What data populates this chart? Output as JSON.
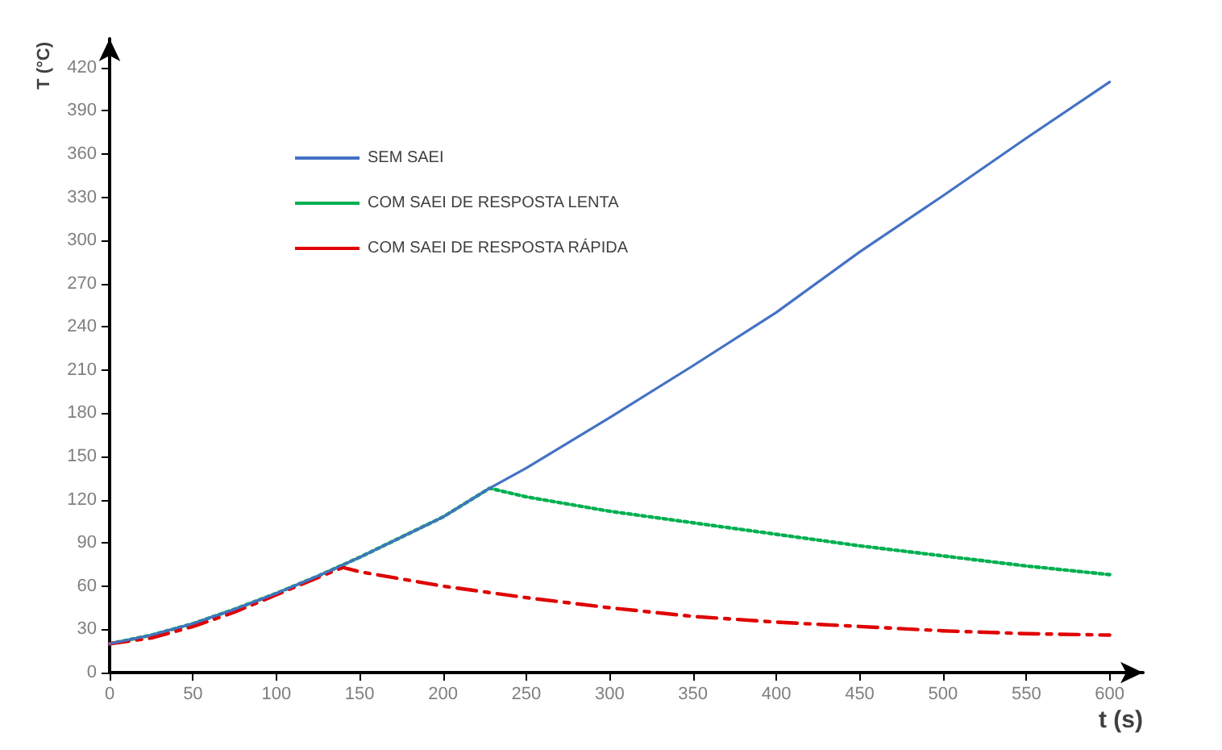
{
  "chart_data": {
    "type": "line",
    "xlabel": "t (s)",
    "ylabel": "T (°C)",
    "xlim": [
      0,
      620
    ],
    "xticks": [
      0,
      50,
      100,
      150,
      200,
      250,
      300,
      350,
      400,
      450,
      500,
      550,
      600
    ],
    "ylim": [
      0,
      440
    ],
    "yticks": [
      0,
      30,
      60,
      90,
      120,
      150,
      180,
      210,
      240,
      270,
      300,
      330,
      360,
      390,
      420
    ],
    "grid": false,
    "legend": "top left",
    "marker": "none",
    "series": [
      {
        "name": "SEM SAEI",
        "color": "#4472c4",
        "line_style": "solid",
        "x": [
          0,
          25,
          50,
          75,
          100,
          125,
          150,
          175,
          200,
          228,
          250,
          300,
          350,
          400,
          450,
          500,
          550,
          600
        ],
        "values": [
          20,
          26,
          34,
          44,
          55,
          67,
          80,
          94,
          108,
          128,
          142,
          177,
          213,
          250,
          292,
          331,
          371,
          410
        ]
      },
      {
        "name": "COM SAEI DE RESPOSTA LENTA",
        "color": "#00b050",
        "line_style": "dotted",
        "x": [
          0,
          25,
          50,
          75,
          100,
          125,
          150,
          175,
          200,
          228,
          250,
          300,
          350,
          400,
          450,
          500,
          550,
          600
        ],
        "values": [
          20,
          26,
          34,
          44,
          55,
          67,
          80,
          94,
          108,
          128,
          122,
          112,
          104,
          96,
          88,
          81,
          74,
          68
        ]
      },
      {
        "name": "COM SAEI DE RESPOSTA RÁPIDA",
        "color": "#e00000",
        "line_style": "dashed",
        "x": [
          0,
          25,
          50,
          75,
          100,
          125,
          140,
          150,
          200,
          250,
          300,
          350,
          400,
          450,
          500,
          550,
          600
        ],
        "values": [
          20,
          24,
          32,
          42,
          54,
          66,
          73,
          70,
          60,
          52,
          45,
          39,
          35,
          32,
          29,
          27,
          26
        ]
      }
    ]
  }
}
